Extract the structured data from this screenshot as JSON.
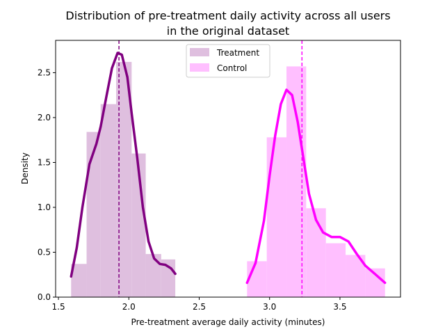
{
  "chart_data": {
    "type": "histogram",
    "title_lines": [
      "Distribution of pre-treatment daily activity across all users",
      "in the original dataset"
    ],
    "xlabel": "Pre-treatment average daily activity (minutes)",
    "ylabel": "Density",
    "xlim": [
      1.48,
      3.93
    ],
    "ylim": [
      0,
      2.86
    ],
    "xticks": [
      {
        "value": 1.5,
        "label": "1.5"
      },
      {
        "value": 2.0,
        "label": "2.0"
      },
      {
        "value": 2.5,
        "label": "2.5"
      },
      {
        "value": 3.0,
        "label": "3.0"
      },
      {
        "value": 3.5,
        "label": "3.5"
      }
    ],
    "yticks": [
      {
        "value": 0.0,
        "label": "0.0"
      },
      {
        "value": 0.5,
        "label": "0.5"
      },
      {
        "value": 1.0,
        "label": "1.0"
      },
      {
        "value": 1.5,
        "label": "1.5"
      },
      {
        "value": 2.0,
        "label": "2.0"
      },
      {
        "value": 2.5,
        "label": "2.5"
      }
    ],
    "legend_position": "top-center",
    "series": [
      {
        "name": "Treatment",
        "bar_color": "#dfbfdf",
        "line_color": "#800080",
        "bins": [
          {
            "x0": 1.59,
            "x1": 1.7,
            "density": 0.37
          },
          {
            "x0": 1.7,
            "x1": 1.8,
            "density": 1.84
          },
          {
            "x0": 1.8,
            "x1": 1.91,
            "density": 2.15
          },
          {
            "x0": 1.91,
            "x1": 2.02,
            "density": 2.62
          },
          {
            "x0": 2.02,
            "x1": 2.12,
            "density": 1.6
          },
          {
            "x0": 2.12,
            "x1": 2.23,
            "density": 0.48
          },
          {
            "x0": 2.23,
            "x1": 2.33,
            "density": 0.42
          }
        ],
        "kde": [
          [
            1.59,
            0.23
          ],
          [
            1.63,
            0.55
          ],
          [
            1.67,
            1.0
          ],
          [
            1.72,
            1.48
          ],
          [
            1.77,
            1.71
          ],
          [
            1.8,
            1.9
          ],
          [
            1.84,
            2.23
          ],
          [
            1.88,
            2.55
          ],
          [
            1.92,
            2.72
          ],
          [
            1.95,
            2.7
          ],
          [
            1.99,
            2.45
          ],
          [
            2.02,
            2.05
          ],
          [
            2.06,
            1.55
          ],
          [
            2.1,
            1.0
          ],
          [
            2.14,
            0.62
          ],
          [
            2.18,
            0.43
          ],
          [
            2.22,
            0.37
          ],
          [
            2.26,
            0.36
          ],
          [
            2.3,
            0.32
          ],
          [
            2.33,
            0.26
          ]
        ],
        "mean": 1.93
      },
      {
        "name": "Control",
        "bar_color": "#ffbfff",
        "line_color": "#ff00ff",
        "bins": [
          {
            "x0": 2.84,
            "x1": 2.98,
            "density": 0.4
          },
          {
            "x0": 2.98,
            "x1": 3.12,
            "density": 1.78
          },
          {
            "x0": 3.12,
            "x1": 3.26,
            "density": 2.57
          },
          {
            "x0": 3.26,
            "x1": 3.4,
            "density": 0.99
          },
          {
            "x0": 3.4,
            "x1": 3.54,
            "density": 0.6
          },
          {
            "x0": 3.54,
            "x1": 3.68,
            "density": 0.47
          },
          {
            "x0": 3.68,
            "x1": 3.82,
            "density": 0.32
          }
        ],
        "kde": [
          [
            2.84,
            0.16
          ],
          [
            2.9,
            0.38
          ],
          [
            2.96,
            0.85
          ],
          [
            3.0,
            1.35
          ],
          [
            3.04,
            1.8
          ],
          [
            3.08,
            2.15
          ],
          [
            3.12,
            2.31
          ],
          [
            3.16,
            2.25
          ],
          [
            3.2,
            1.95
          ],
          [
            3.24,
            1.55
          ],
          [
            3.28,
            1.15
          ],
          [
            3.33,
            0.86
          ],
          [
            3.38,
            0.72
          ],
          [
            3.44,
            0.67
          ],
          [
            3.5,
            0.67
          ],
          [
            3.56,
            0.62
          ],
          [
            3.62,
            0.48
          ],
          [
            3.68,
            0.35
          ],
          [
            3.74,
            0.27
          ],
          [
            3.82,
            0.16
          ]
        ],
        "mean": 3.23
      }
    ]
  }
}
